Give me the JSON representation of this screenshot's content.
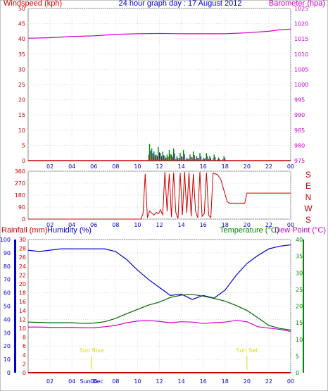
{
  "chart_data": [
    {
      "type": "line",
      "title": "24 hour graph day : 17 August 2012",
      "ylabel": "Windspeed (kph)",
      "y2label": "Barometer (hpa)",
      "ylim": [
        0,
        50
      ],
      "y2lim": [
        975,
        1025
      ],
      "yticks": [
        "0",
        "5",
        "10",
        "15",
        "20",
        "25",
        "30",
        "35",
        "40",
        "45",
        "50"
      ],
      "y2ticks": [
        "975",
        "980",
        "985",
        "990",
        "995",
        "1000",
        "1005",
        "1010",
        "1015",
        "1020",
        "1025"
      ],
      "xticks": [
        "02",
        "04",
        "06",
        "08",
        "10",
        "12",
        "14",
        "16",
        "18",
        "20",
        "22",
        "00"
      ],
      "grid": true,
      "colors": {
        "windspeed": "#cc0000",
        "gust": "#008800",
        "average": "#0000cc",
        "barometer": "#cc00cc",
        "axis_left": "#cc0000",
        "axis_right": "#cc00cc",
        "title": "#0000cc"
      },
      "series": [
        {
          "name": "Barometer (hpa)",
          "axis": "right",
          "x": [
            0,
            2,
            4,
            6,
            8,
            10,
            12,
            14,
            16,
            18,
            20,
            22,
            23,
            24
          ],
          "values": [
            1015.2,
            1015.4,
            1015.8,
            1016.0,
            1016.5,
            1016.7,
            1016.8,
            1016.7,
            1016.7,
            1016.7,
            1017.0,
            1017.5,
            1018.0,
            1018.2
          ]
        },
        {
          "name": "Windspeed (kph)",
          "axis": "left",
          "x": [
            11.1,
            11.3,
            11.5,
            11.7,
            11.9,
            12.1,
            12.3,
            12.5,
            12.7,
            12.9,
            13.1,
            13.3,
            13.6,
            13.9,
            14.2,
            14.5,
            14.8,
            15.1,
            15.4,
            15.7,
            16.0,
            16.3,
            16.6,
            17.0,
            17.4,
            17.9
          ],
          "values": [
            5.5,
            4.0,
            3.0,
            2.0,
            4.5,
            2.5,
            3.0,
            1.5,
            2.0,
            3.5,
            2.0,
            4.0,
            1.5,
            2.5,
            3.5,
            1.0,
            2.0,
            3.0,
            1.5,
            2.5,
            1.0,
            2.5,
            1.5,
            2.0,
            1.0,
            1.5
          ]
        }
      ]
    },
    {
      "type": "scatter",
      "ylim": [
        0,
        360
      ],
      "yticks": [
        "0",
        "90",
        "180",
        "270",
        "360"
      ],
      "xticks": [
        "02",
        "04",
        "06",
        "08",
        "10",
        "12",
        "14",
        "16",
        "18",
        "20",
        "22",
        "00"
      ],
      "directions": [
        "S",
        "E",
        "N",
        "W",
        "S"
      ],
      "colors": {
        "line": "#cc0000",
        "axis": "#cc0000"
      },
      "series": [
        {
          "name": "Wind direction",
          "x": [
            0,
            10.3,
            10.5,
            10.7,
            10.9,
            11.1,
            11.3,
            11.5,
            11.7,
            11.9,
            12.1,
            12.3,
            12.5,
            12.7,
            12.9,
            13.1,
            13.3,
            13.5,
            13.7,
            13.9,
            14.1,
            14.3,
            14.5,
            14.7,
            14.9,
            15.1,
            15.3,
            15.5,
            15.7,
            15.9,
            16.1,
            16.3,
            16.5,
            16.7,
            16.9,
            17.1,
            17.3,
            17.6,
            18.2,
            18.4,
            19.8,
            20.0,
            24
          ],
          "values": [
            0,
            0,
            40,
            340,
            10,
            60,
            45,
            30,
            50,
            40,
            70,
            30,
            355,
            60,
            340,
            15,
            350,
            50,
            5,
            345,
            30,
            355,
            45,
            350,
            20,
            340,
            60,
            10,
            355,
            20,
            40,
            350,
            30,
            10,
            345,
            340,
            335,
            300,
            130,
            120,
            120,
            195,
            195
          ]
        }
      ]
    },
    {
      "type": "line",
      "xticks": [
        "02",
        "04",
        "06",
        "08",
        "10",
        "12",
        "14",
        "16",
        "18",
        "20",
        "22",
        "00"
      ],
      "humidity_ticks": [
        "0",
        "10",
        "20",
        "30",
        "40",
        "50",
        "60",
        "70",
        "80",
        "90",
        "100"
      ],
      "rain_ticks": [
        "0",
        "2",
        "4",
        "6",
        "8",
        "10",
        "12",
        "14",
        "16",
        "18",
        "20",
        "22",
        "24",
        "26",
        "28",
        "30"
      ],
      "temp_ticks": [
        "0",
        "5",
        "10",
        "15",
        "20",
        "25",
        "30",
        "35",
        "40"
      ],
      "labels": {
        "rainfall": "Rainfall (mm)",
        "humidity": "Humidity (%)",
        "temperature": "Temperature (°C)",
        "dewpoint": "Dew Point (°C)",
        "sunrise": "Sun Rise",
        "sunset": "Sun Set",
        "suninc": "Sun Dec"
      },
      "sunrise_x": 5.8,
      "sunset_x": 20.0,
      "colors": {
        "humidity": "#0000cc",
        "temperature": "#006600",
        "dewpoint": "#cc00cc",
        "rainfall": "#cc0000",
        "sun": "#dddd00",
        "axis_rain": "#cc0000",
        "axis_hum": "#0000cc",
        "axis_temp": "#008800"
      },
      "series": [
        {
          "name": "Humidity (%)",
          "axis": "humidity",
          "x": [
            0,
            1,
            2,
            3,
            4,
            5,
            6,
            7,
            8,
            9,
            10,
            11,
            12,
            13,
            14,
            15,
            16,
            17,
            18,
            19,
            20,
            21,
            22,
            23,
            24
          ],
          "values": [
            92,
            91,
            92,
            93,
            93,
            93,
            93,
            93,
            91,
            85,
            77,
            70,
            64,
            58,
            59,
            55,
            58,
            56,
            62,
            73,
            82,
            88,
            93,
            95,
            96
          ]
        },
        {
          "name": "Temperature (°C)",
          "axis": "temp",
          "x": [
            0,
            1,
            2,
            3,
            4,
            5,
            6,
            7,
            8,
            9,
            10,
            11,
            12,
            13,
            14,
            15,
            16,
            17,
            18,
            19,
            20,
            21,
            22,
            23,
            24
          ],
          "values": [
            15.2,
            15.1,
            15.0,
            15.0,
            15.0,
            14.8,
            14.9,
            15.3,
            16.3,
            17.7,
            19.0,
            20.3,
            21.2,
            22.6,
            23.3,
            23.5,
            23.0,
            22.3,
            21.5,
            20.2,
            18.7,
            16.5,
            14.2,
            13.3,
            12.8
          ]
        },
        {
          "name": "Dew Point (°C)",
          "axis": "temp",
          "x": [
            0,
            1,
            2,
            3,
            4,
            5,
            6,
            7,
            8,
            9,
            10,
            11,
            12,
            13,
            14,
            15,
            16,
            17,
            18,
            19,
            20,
            21,
            22,
            23,
            24
          ],
          "values": [
            13.7,
            13.7,
            13.6,
            13.6,
            13.6,
            13.5,
            13.5,
            13.8,
            14.2,
            15.0,
            15.5,
            15.7,
            15.4,
            15.0,
            15.3,
            15.2,
            14.8,
            15.0,
            15.2,
            15.7,
            15.3,
            13.8,
            13.4,
            13.0,
            12.4
          ]
        },
        {
          "name": "Rainfall (mm)",
          "axis": "rain",
          "x": [
            0,
            24
          ],
          "values": [
            0,
            0
          ]
        }
      ]
    }
  ]
}
